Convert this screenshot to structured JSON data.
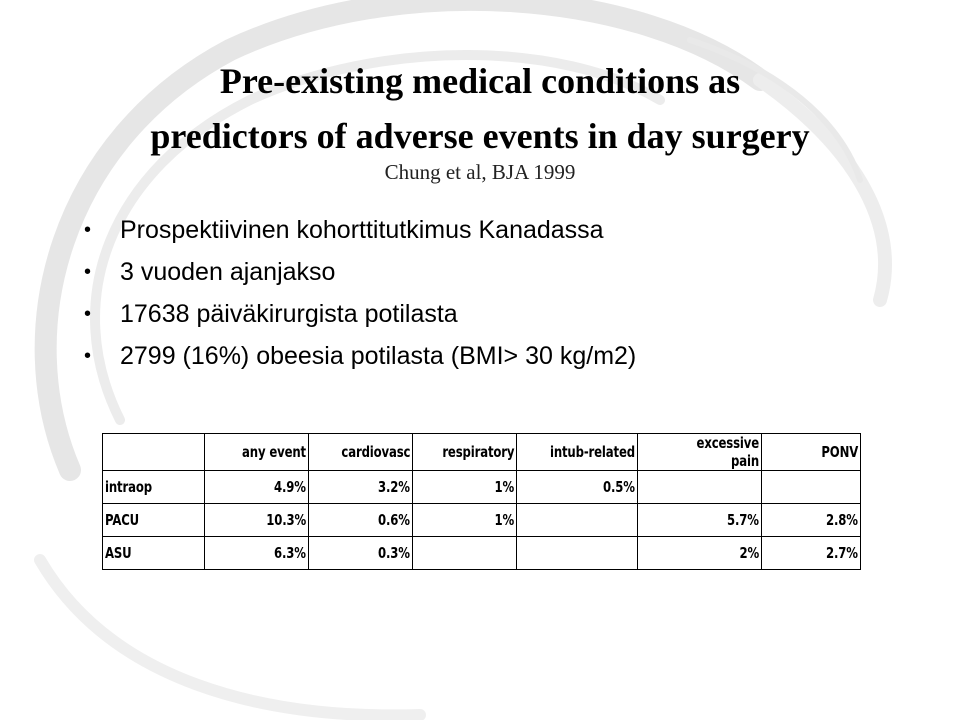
{
  "title_line1": "Pre-existing medical conditions as",
  "title_line2": "predictors of adverse events in day surgery",
  "subtitle": "Chung et al, BJA 1999",
  "bullets": [
    "Prospektiivinen kohorttitutkimus Kanadassa",
    "3 vuoden ajanjakso",
    "17638 päiväkirurgista potilasta",
    "2799 (16%) obeesia potilasta (BMI> 30 kg/m2)"
  ],
  "table": {
    "headers": [
      "",
      "any event",
      "cardiovasc",
      "respiratory",
      "intub-related",
      "excessive pain",
      "PONV"
    ],
    "rows": [
      {
        "label": "intraop",
        "cells": [
          "4.9%",
          "3.2%",
          "1%",
          "0.5%",
          "",
          ""
        ]
      },
      {
        "label": "PACU",
        "cells": [
          "10.3%",
          "0.6%",
          "1%",
          "",
          "5.7%",
          "2.8%"
        ]
      },
      {
        "label": "ASU",
        "cells": [
          "6.3%",
          "0.3%",
          "",
          "",
          "2%",
          "2.7%"
        ]
      }
    ]
  }
}
